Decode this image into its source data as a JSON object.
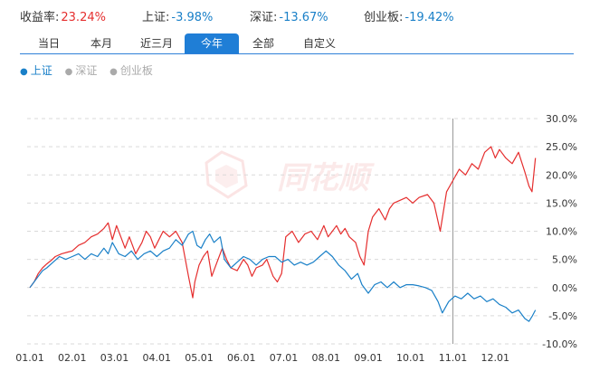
{
  "summary": {
    "yield_label": "收益率:",
    "yield_value": "23.24%",
    "sh_label": "上证:",
    "sh_value": "-3.98%",
    "sz_label": "深证:",
    "sz_value": "-13.67%",
    "cyb_label": "创业板:",
    "cyb_value": "-19.42%"
  },
  "tabs": [
    {
      "label": "当日"
    },
    {
      "label": "本月"
    },
    {
      "label": "近三月"
    },
    {
      "label": "今年",
      "active": true
    },
    {
      "label": "全部"
    },
    {
      "label": "自定义"
    }
  ],
  "legend": [
    {
      "label": "上证",
      "active": true
    },
    {
      "label": "深证",
      "active": false
    },
    {
      "label": "创业板",
      "active": false
    }
  ],
  "watermark": "同花顺",
  "colors": {
    "portfolio": "#e52e2e",
    "index": "#1a80c8",
    "active_tab": "#1f7ed6",
    "grid": "#d9d9d9",
    "crosshair": "#999999"
  },
  "chart_data": {
    "type": "line",
    "grid": true,
    "ylim": [
      -10,
      30
    ],
    "yticks": [
      "30.0%",
      "25.0%",
      "20.0%",
      "15.0%",
      "10.0%",
      "5.0%",
      "0.0%",
      "-5.0%",
      "-10.0%"
    ],
    "xlim": [
      1,
      13
    ],
    "xticks": [
      "01.01",
      "02.01",
      "03.01",
      "04.01",
      "05.01",
      "06.01",
      "07.01",
      "08.01",
      "09.01",
      "10.01",
      "11.01",
      "12.01"
    ],
    "crosshair_x": 11.0,
    "series": [
      {
        "name": "收益率",
        "color": "#e52e2e",
        "points": [
          [
            1.0,
            0.0
          ],
          [
            1.1,
            1.0
          ],
          [
            1.2,
            2.5
          ],
          [
            1.3,
            3.5
          ],
          [
            1.4,
            4.2
          ],
          [
            1.5,
            4.8
          ],
          [
            1.6,
            5.5
          ],
          [
            1.75,
            6.0
          ],
          [
            1.9,
            6.3
          ],
          [
            2.0,
            6.5
          ],
          [
            2.15,
            7.5
          ],
          [
            2.3,
            8.0
          ],
          [
            2.45,
            9.0
          ],
          [
            2.6,
            9.5
          ],
          [
            2.75,
            10.5
          ],
          [
            2.85,
            11.5
          ],
          [
            2.95,
            8.5
          ],
          [
            3.05,
            11.0
          ],
          [
            3.15,
            9.0
          ],
          [
            3.25,
            7.0
          ],
          [
            3.35,
            9.0
          ],
          [
            3.5,
            6.0
          ],
          [
            3.65,
            8.0
          ],
          [
            3.75,
            10.0
          ],
          [
            3.85,
            9.0
          ],
          [
            3.95,
            7.0
          ],
          [
            4.05,
            8.5
          ],
          [
            4.15,
            10.0
          ],
          [
            4.3,
            9.0
          ],
          [
            4.45,
            10.0
          ],
          [
            4.6,
            8.0
          ],
          [
            4.75,
            2.0
          ],
          [
            4.85,
            -1.8
          ],
          [
            4.9,
            1.0
          ],
          [
            5.0,
            4.0
          ],
          [
            5.1,
            5.5
          ],
          [
            5.2,
            6.5
          ],
          [
            5.3,
            2.0
          ],
          [
            5.45,
            5.0
          ],
          [
            5.55,
            7.0
          ],
          [
            5.65,
            5.0
          ],
          [
            5.75,
            3.5
          ],
          [
            5.9,
            3.0
          ],
          [
            6.05,
            5.0
          ],
          [
            6.15,
            4.0
          ],
          [
            6.25,
            2.0
          ],
          [
            6.35,
            3.5
          ],
          [
            6.5,
            4.0
          ],
          [
            6.6,
            5.0
          ],
          [
            6.75,
            2.0
          ],
          [
            6.85,
            1.0
          ],
          [
            6.95,
            2.5
          ],
          [
            7.05,
            9.0
          ],
          [
            7.2,
            10.0
          ],
          [
            7.35,
            8.0
          ],
          [
            7.5,
            9.5
          ],
          [
            7.65,
            10.0
          ],
          [
            7.8,
            8.5
          ],
          [
            7.95,
            11.0
          ],
          [
            8.05,
            9.0
          ],
          [
            8.15,
            10.0
          ],
          [
            8.25,
            11.0
          ],
          [
            8.35,
            9.5
          ],
          [
            8.45,
            10.5
          ],
          [
            8.55,
            9.0
          ],
          [
            8.7,
            8.0
          ],
          [
            8.8,
            5.5
          ],
          [
            8.9,
            4.0
          ],
          [
            9.0,
            10.0
          ],
          [
            9.1,
            12.5
          ],
          [
            9.25,
            14.0
          ],
          [
            9.4,
            12.0
          ],
          [
            9.5,
            14.0
          ],
          [
            9.6,
            15.0
          ],
          [
            9.75,
            15.5
          ],
          [
            9.9,
            16.0
          ],
          [
            10.05,
            15.0
          ],
          [
            10.2,
            16.0
          ],
          [
            10.4,
            16.5
          ],
          [
            10.55,
            15.0
          ],
          [
            10.7,
            10.0
          ],
          [
            10.85,
            17.0
          ],
          [
            11.0,
            19.0
          ],
          [
            11.15,
            21.0
          ],
          [
            11.3,
            20.0
          ],
          [
            11.45,
            22.0
          ],
          [
            11.6,
            21.0
          ],
          [
            11.75,
            24.0
          ],
          [
            11.9,
            25.0
          ],
          [
            12.0,
            23.0
          ],
          [
            12.1,
            24.5
          ],
          [
            12.25,
            23.0
          ],
          [
            12.4,
            22.0
          ],
          [
            12.55,
            24.0
          ],
          [
            12.7,
            20.5
          ],
          [
            12.8,
            18.0
          ],
          [
            12.87,
            17.0
          ],
          [
            12.95,
            23.0
          ]
        ]
      },
      {
        "name": "上证",
        "color": "#1a80c8",
        "points": [
          [
            1.0,
            0.0
          ],
          [
            1.1,
            1.0
          ],
          [
            1.2,
            2.0
          ],
          [
            1.3,
            3.0
          ],
          [
            1.4,
            3.5
          ],
          [
            1.55,
            4.5
          ],
          [
            1.7,
            5.5
          ],
          [
            1.85,
            5.0
          ],
          [
            2.0,
            5.5
          ],
          [
            2.15,
            6.0
          ],
          [
            2.3,
            5.0
          ],
          [
            2.45,
            6.0
          ],
          [
            2.6,
            5.5
          ],
          [
            2.75,
            7.0
          ],
          [
            2.85,
            6.0
          ],
          [
            2.95,
            8.0
          ],
          [
            3.1,
            6.0
          ],
          [
            3.25,
            5.5
          ],
          [
            3.4,
            6.5
          ],
          [
            3.55,
            5.0
          ],
          [
            3.7,
            6.0
          ],
          [
            3.85,
            6.5
          ],
          [
            4.0,
            5.5
          ],
          [
            4.15,
            6.5
          ],
          [
            4.3,
            7.0
          ],
          [
            4.45,
            8.5
          ],
          [
            4.6,
            7.5
          ],
          [
            4.75,
            9.5
          ],
          [
            4.85,
            10.0
          ],
          [
            4.95,
            7.5
          ],
          [
            5.05,
            7.0
          ],
          [
            5.15,
            8.5
          ],
          [
            5.25,
            9.5
          ],
          [
            5.35,
            8.0
          ],
          [
            5.5,
            9.0
          ],
          [
            5.6,
            5.0
          ],
          [
            5.75,
            3.5
          ],
          [
            5.9,
            4.5
          ],
          [
            6.05,
            5.5
          ],
          [
            6.2,
            5.0
          ],
          [
            6.35,
            4.0
          ],
          [
            6.5,
            5.0
          ],
          [
            6.65,
            5.5
          ],
          [
            6.8,
            5.5
          ],
          [
            6.95,
            4.5
          ],
          [
            7.1,
            5.0
          ],
          [
            7.25,
            4.0
          ],
          [
            7.4,
            4.5
          ],
          [
            7.55,
            4.0
          ],
          [
            7.7,
            4.5
          ],
          [
            7.85,
            5.5
          ],
          [
            8.0,
            6.5
          ],
          [
            8.15,
            5.5
          ],
          [
            8.3,
            4.0
          ],
          [
            8.45,
            3.0
          ],
          [
            8.6,
            1.5
          ],
          [
            8.75,
            2.5
          ],
          [
            8.85,
            0.5
          ],
          [
            9.0,
            -1.0
          ],
          [
            9.15,
            0.5
          ],
          [
            9.3,
            1.0
          ],
          [
            9.45,
            0.0
          ],
          [
            9.6,
            1.0
          ],
          [
            9.75,
            0.0
          ],
          [
            9.9,
            0.5
          ],
          [
            10.05,
            0.5
          ],
          [
            10.2,
            0.3
          ],
          [
            10.35,
            0.0
          ],
          [
            10.5,
            -0.5
          ],
          [
            10.65,
            -2.5
          ],
          [
            10.75,
            -4.5
          ],
          [
            10.9,
            -2.5
          ],
          [
            11.05,
            -1.5
          ],
          [
            11.2,
            -2.0
          ],
          [
            11.35,
            -1.0
          ],
          [
            11.5,
            -2.0
          ],
          [
            11.65,
            -1.5
          ],
          [
            11.8,
            -2.5
          ],
          [
            11.95,
            -2.0
          ],
          [
            12.1,
            -3.0
          ],
          [
            12.25,
            -3.5
          ],
          [
            12.4,
            -4.5
          ],
          [
            12.55,
            -4.0
          ],
          [
            12.7,
            -5.5
          ],
          [
            12.8,
            -6.0
          ],
          [
            12.88,
            -5.0
          ],
          [
            12.95,
            -4.0
          ]
        ]
      }
    ]
  }
}
